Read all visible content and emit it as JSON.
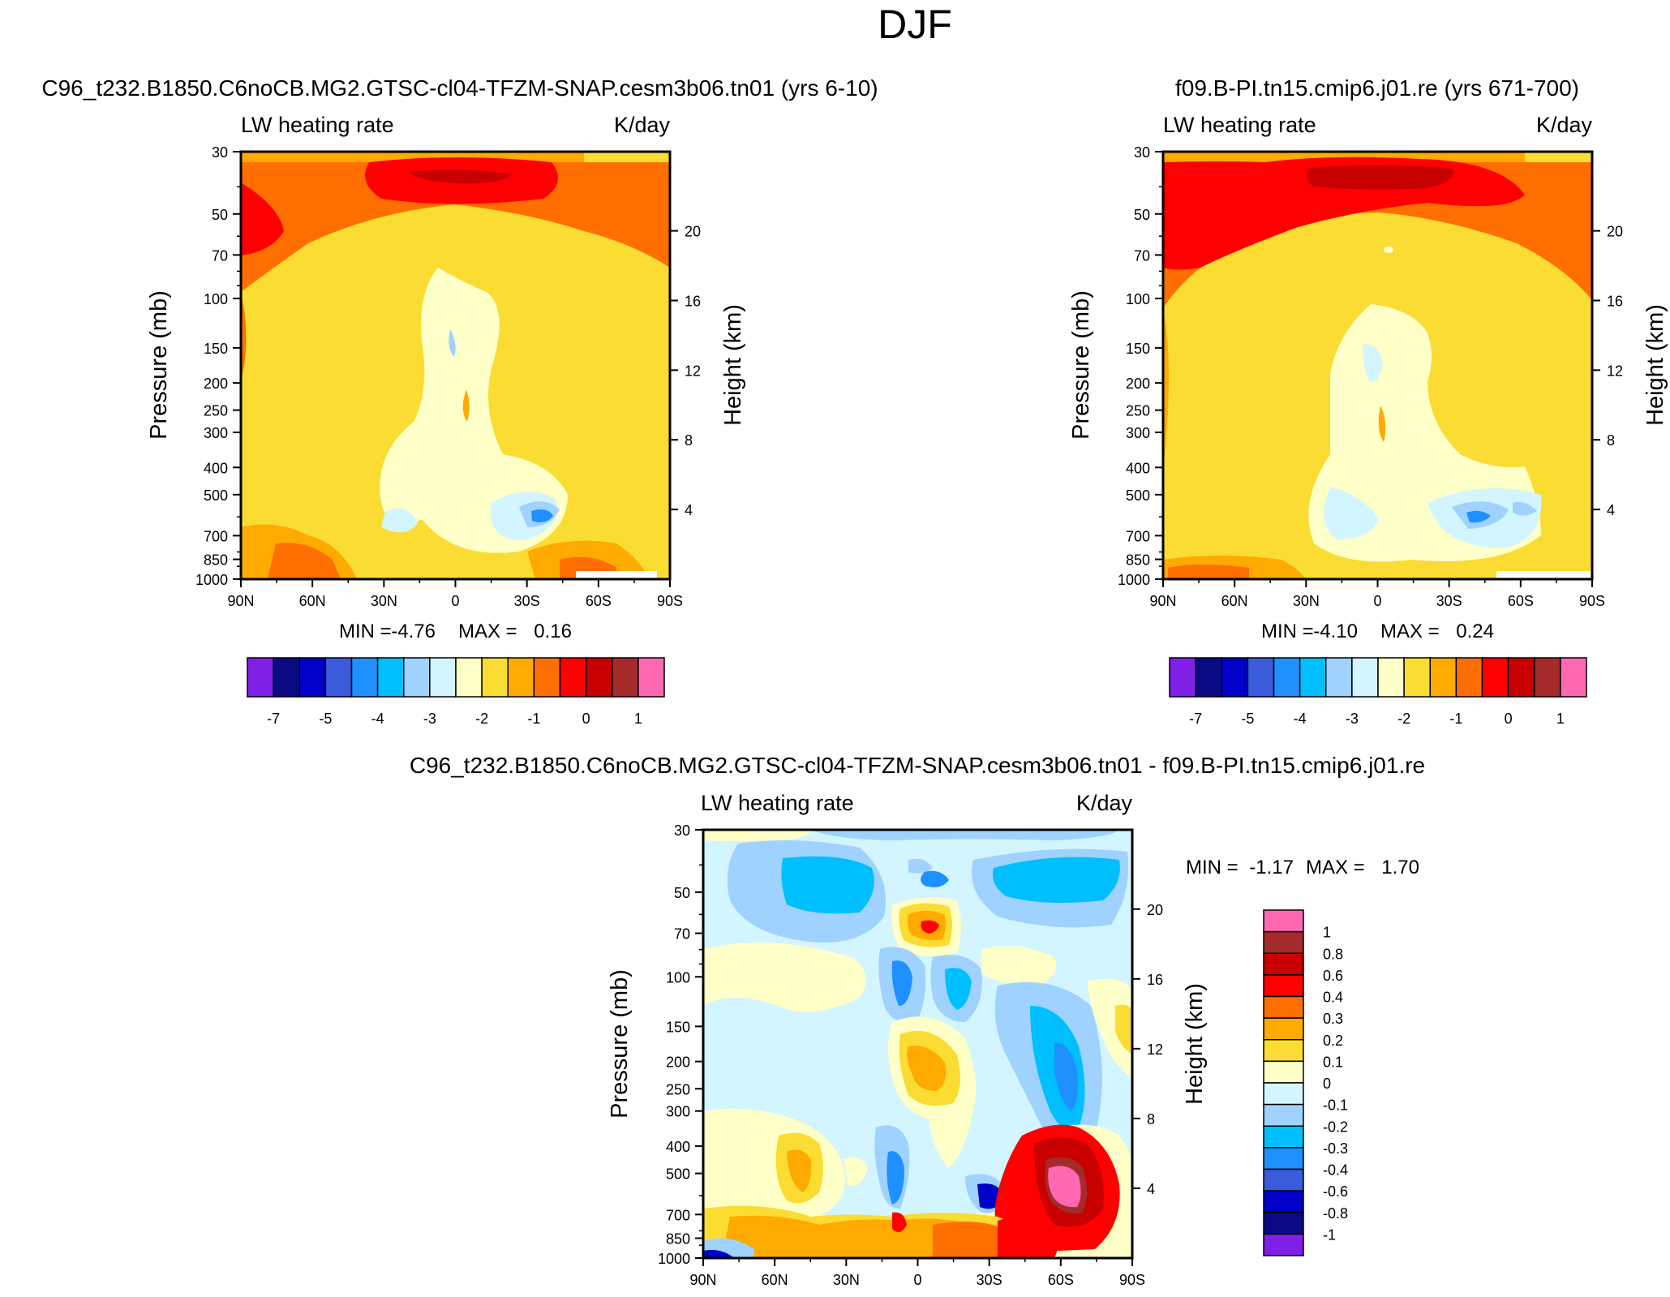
{
  "title": "DJF",
  "colors": {
    "base": [
      "#7f1fe8",
      "#0a0a84",
      "#0000c8",
      "#3a5bdc",
      "#1e90ff",
      "#00bfff",
      "#a0d2ff",
      "#d2f5ff",
      "#ffffc8",
      "#fadc32",
      "#ffaa00",
      "#ff6e00",
      "#ff0000",
      "#c80000",
      "#a52a2a",
      "#ff69b4"
    ],
    "diff": [
      "#7f1fe8",
      "#0a0a84",
      "#0000c8",
      "#3a5bdc",
      "#1e90ff",
      "#00bfff",
      "#a0d2ff",
      "#d2f5ff",
      "#ffffc8",
      "#fadc32",
      "#ffaa00",
      "#ff6e00",
      "#ff0000",
      "#c80000",
      "#a52a2a",
      "#ff69b4"
    ]
  },
  "panels": {
    "left": {
      "case": "C96_t232.B1850.C6noCB.MG2.GTSC-cl04-TFZM-SNAP.cesm3b06.tn01 (yrs 6-10)",
      "left_label": "LW heating rate",
      "right_label": "K/day",
      "y_title": "Pressure (mb)",
      "y2_title": "Height (km)",
      "min_label": "MIN =",
      "min_value": "-4.76",
      "max_label": "MAX =",
      "max_value": "0.16"
    },
    "right": {
      "case": "f09.B-PI.tn15.cmip6.j01.re (yrs 671-700)",
      "left_label": "LW heating rate",
      "right_label": "K/day",
      "y_title": "Pressure (mb)",
      "y2_title": "Height (km)",
      "min_label": "MIN =",
      "min_value": "-4.10",
      "max_label": "MAX =",
      "max_value": "0.24"
    },
    "diff": {
      "case": "C96_t232.B1850.C6noCB.MG2.GTSC-cl04-TFZM-SNAP.cesm3b06.tn01 - f09.B-PI.tn15.cmip6.j01.re",
      "left_label": "LW heating rate",
      "right_label": "K/day",
      "y_title": "Pressure (mb)",
      "y2_title": "Height (km)",
      "min_label": "MIN =",
      "min_value": "-1.17",
      "max_label": "MAX =",
      "max_value": "1.70"
    }
  },
  "chart_data": [
    {
      "type": "heatmap",
      "title": "C96_t232.B1850.C6noCB.MG2.GTSC-cl04-TFZM-SNAP.cesm3b06.tn01 (yrs 6-10)",
      "variable": "LW heating rate",
      "units": "K/day",
      "x_tick_labels": [
        "90N",
        "60N",
        "30N",
        "0",
        "30S",
        "60S",
        "90S"
      ],
      "x_ticks": [
        90,
        60,
        30,
        0,
        -30,
        -60,
        -90
      ],
      "y_tick_labels": [
        "30",
        "50",
        "70",
        "100",
        "150",
        "200",
        "250",
        "300",
        "400",
        "500",
        "700",
        "850",
        "1000"
      ],
      "y_ticks": [
        30,
        50,
        70,
        100,
        150,
        200,
        250,
        300,
        400,
        500,
        700,
        850,
        1000
      ],
      "y2_tick_labels": [
        "20",
        "16",
        "12",
        "8",
        "4"
      ],
      "y2_ticks": [
        20,
        16,
        12,
        8,
        4
      ],
      "ylabel": "Pressure (mb)",
      "y2label": "Height (km)",
      "ylim": [
        1000,
        30
      ],
      "xlim": [
        90,
        -90
      ],
      "min": -4.76,
      "max": 0.16,
      "contour_levels": [
        -7,
        -6,
        -5,
        -4.5,
        -4,
        -3.5,
        -3,
        -2.5,
        -2,
        -1.5,
        -1,
        -0.5,
        0,
        0.5,
        1
      ],
      "colorbar_labels": [
        "-7",
        "-5",
        "-4",
        "-3",
        "-2",
        "-1",
        "0",
        "1"
      ],
      "colorbar_orientation": "horizontal"
    },
    {
      "type": "heatmap",
      "title": "f09.B-PI.tn15.cmip6.j01.re (yrs 671-700)",
      "variable": "LW heating rate",
      "units": "K/day",
      "x_tick_labels": [
        "90N",
        "60N",
        "30N",
        "0",
        "30S",
        "60S",
        "90S"
      ],
      "x_ticks": [
        90,
        60,
        30,
        0,
        -30,
        -60,
        -90
      ],
      "y_tick_labels": [
        "30",
        "50",
        "70",
        "100",
        "150",
        "200",
        "250",
        "300",
        "400",
        "500",
        "700",
        "850",
        "1000"
      ],
      "y_ticks": [
        30,
        50,
        70,
        100,
        150,
        200,
        250,
        300,
        400,
        500,
        700,
        850,
        1000
      ],
      "y2_tick_labels": [
        "20",
        "16",
        "12",
        "8",
        "4"
      ],
      "y2_ticks": [
        20,
        16,
        12,
        8,
        4
      ],
      "ylabel": "Pressure (mb)",
      "y2label": "Height (km)",
      "ylim": [
        1000,
        30
      ],
      "xlim": [
        90,
        -90
      ],
      "min": -4.1,
      "max": 0.24,
      "contour_levels": [
        -7,
        -6,
        -5,
        -4.5,
        -4,
        -3.5,
        -3,
        -2.5,
        -2,
        -1.5,
        -1,
        -0.5,
        0,
        0.5,
        1
      ],
      "colorbar_labels": [
        "-7",
        "-5",
        "-4",
        "-3",
        "-2",
        "-1",
        "0",
        "1"
      ],
      "colorbar_orientation": "horizontal"
    },
    {
      "type": "heatmap",
      "title": "C96_t232.B1850.C6noCB.MG2.GTSC-cl04-TFZM-SNAP.cesm3b06.tn01 - f09.B-PI.tn15.cmip6.j01.re",
      "variable": "LW heating rate",
      "units": "K/day",
      "x_tick_labels": [
        "90N",
        "60N",
        "30N",
        "0",
        "30S",
        "60S",
        "90S"
      ],
      "x_ticks": [
        90,
        60,
        30,
        0,
        -30,
        -60,
        -90
      ],
      "y_tick_labels": [
        "30",
        "50",
        "70",
        "100",
        "150",
        "200",
        "250",
        "300",
        "400",
        "500",
        "700",
        "850",
        "1000"
      ],
      "y_ticks": [
        30,
        50,
        70,
        100,
        150,
        200,
        250,
        300,
        400,
        500,
        700,
        850,
        1000
      ],
      "y2_tick_labels": [
        "20",
        "16",
        "12",
        "8",
        "4"
      ],
      "y2_ticks": [
        20,
        16,
        12,
        8,
        4
      ],
      "ylabel": "Pressure (mb)",
      "y2label": "Height (km)",
      "ylim": [
        1000,
        30
      ],
      "xlim": [
        90,
        -90
      ],
      "min": -1.17,
      "max": 1.7,
      "contour_levels": [
        -1,
        -0.8,
        -0.6,
        -0.4,
        -0.3,
        -0.2,
        -0.1,
        0,
        0.1,
        0.2,
        0.3,
        0.4,
        0.6,
        0.8,
        1
      ],
      "colorbar_labels": [
        "1",
        "0.8",
        "0.6",
        "0.4",
        "0.3",
        "0.2",
        "0.1",
        "0",
        "-0.1",
        "-0.2",
        "-0.3",
        "-0.4",
        "-0.6",
        "-0.8",
        "-1"
      ],
      "colorbar_orientation": "vertical"
    }
  ]
}
